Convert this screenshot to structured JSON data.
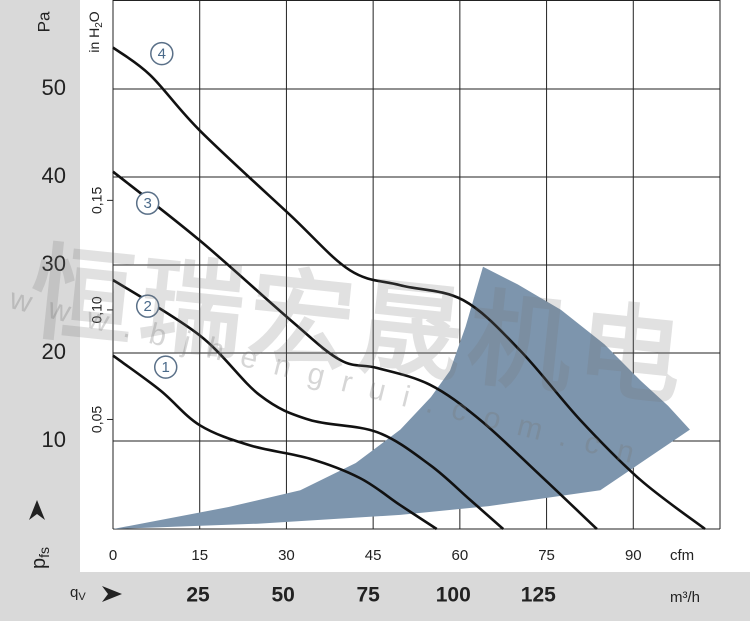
{
  "chart_data": {
    "type": "line",
    "xlim": [
      0,
      105
    ],
    "xticks": [
      0,
      15,
      30,
      45,
      60,
      75,
      90
    ],
    "x_unit": "cfm",
    "x2lim": [
      0,
      178.4
    ],
    "x2ticks": [
      25,
      50,
      75,
      100,
      125
    ],
    "x2_unit": "m³/h",
    "x2_symbol": [
      "q",
      "V"
    ],
    "ylim": [
      0,
      60
    ],
    "yticks": [
      10,
      20,
      30,
      40,
      50
    ],
    "y_unit": "Pa",
    "y_symbol": [
      "p",
      "fs"
    ],
    "y2lim": [
      0,
      0.241
    ],
    "y2ticks": [
      {
        "value": 0.05,
        "label": "0,05"
      },
      {
        "value": 0.1,
        "label": "0,10"
      },
      {
        "value": 0.15,
        "label": "0,15"
      }
    ],
    "y2_unit": [
      "in H",
      "2",
      "O"
    ],
    "grid": true,
    "series": [
      {
        "name": "1",
        "color": "#111111",
        "x": [
          0,
          8.1,
          15,
          23.7,
          34,
          42.7,
          49.7,
          56
        ],
        "values": [
          19.7,
          15.8,
          11.8,
          9.5,
          8,
          5.8,
          2.7,
          0
        ]
      },
      {
        "name": "2",
        "color": "#111111",
        "x": [
          0,
          15,
          25.4,
          34,
          45.7,
          54.8,
          61.8,
          67.5
        ],
        "values": [
          28.3,
          22,
          15.2,
          12.4,
          11,
          7.3,
          3.3,
          0
        ]
      },
      {
        "name": "3",
        "color": "#111111",
        "x": [
          0,
          15,
          30.6,
          39.3,
          45.7,
          54.8,
          63.5,
          73.9,
          83.7
        ],
        "values": [
          40.6,
          32.8,
          23.8,
          19.2,
          18.3,
          16.4,
          12.4,
          6.1,
          0
        ]
      },
      {
        "name": "4",
        "color": "#111111",
        "x": [
          0,
          6.4,
          15,
          30.6,
          41,
          49.7,
          60.6,
          70.4,
          80.8,
          91.2,
          102.4
        ],
        "values": [
          54.7,
          51.6,
          45.3,
          35.7,
          29.4,
          27.7,
          26,
          20.3,
          12.4,
          5.6,
          0
        ]
      }
    ],
    "operating_range": {
      "color": "#7d95ad",
      "x": [
        0,
        20,
        32.4,
        42,
        49.7,
        55,
        58.3,
        61,
        64,
        70,
        77.5,
        85,
        91.2,
        96,
        99.8,
        84.3,
        65,
        49.7,
        25,
        0
      ],
      "values": [
        0,
        2.5,
        4.4,
        7.5,
        11.3,
        15,
        18,
        23,
        29.8,
        27.8,
        24.9,
        21,
        16.9,
        14,
        11.3,
        4.4,
        2.6,
        1.6,
        0.6,
        0
      ]
    },
    "watermark": [
      "恒瑞宏晟机电",
      "www.bjhengrui.com.cn"
    ]
  }
}
